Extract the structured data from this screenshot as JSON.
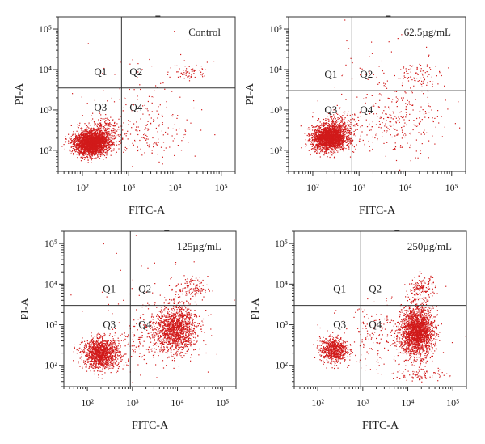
{
  "panels": [
    {
      "title": "Control",
      "xlabel": "FITC-A",
      "ylabel": "PI-A",
      "quadrants": [
        "Q1",
        "Q2",
        "Q3",
        "Q4"
      ]
    },
    {
      "title": "62.5µg/mL",
      "xlabel": "FITC-A",
      "ylabel": "PI-A",
      "quadrants": [
        "Q1",
        "Q2",
        "Q3",
        "Q4"
      ]
    },
    {
      "title": "125µg/mL",
      "xlabel": "FITC-A",
      "ylabel": "PI-A",
      "quadrants": [
        "Q1",
        "Q2",
        "Q3",
        "Q4"
      ]
    },
    {
      "title": "250µg/mL",
      "xlabel": "FITC-A",
      "ylabel": "PI-A",
      "quadrants": [
        "Q1",
        "Q2",
        "Q3",
        "Q4"
      ]
    }
  ],
  "chart_data": [
    {
      "type": "scatter",
      "title": "Control",
      "xlabel": "FITC-A",
      "ylabel": "PI-A",
      "x_scale": "log",
      "y_scale": "log",
      "xlim": [
        30,
        200000
      ],
      "ylim": [
        30,
        200000
      ],
      "x_ticks": [
        {
          "value": 100,
          "label": "10²"
        },
        {
          "value": 1000,
          "label": "10³"
        },
        {
          "value": 10000,
          "label": "10⁴"
        },
        {
          "value": 100000,
          "label": "10⁵"
        }
      ],
      "y_ticks": [
        {
          "value": 100,
          "label": "10²"
        },
        {
          "value": 1000,
          "label": "10³"
        },
        {
          "value": 10000,
          "label": "10⁴"
        },
        {
          "value": 100000,
          "label": "10⁵"
        }
      ],
      "gate": {
        "x": 700,
        "y": 3500
      },
      "quadrants": [
        "Q1",
        "Q2",
        "Q3",
        "Q4"
      ],
      "color": "#d11a1a",
      "clusters": [
        {
          "cx": 150,
          "cy": 150,
          "sx": 0.18,
          "sy": 0.14,
          "n": 2400
        },
        {
          "cx": 260,
          "cy": 260,
          "sx": 0.2,
          "sy": 0.2,
          "n": 400
        },
        {
          "cx": 20000,
          "cy": 9000,
          "sx": 0.2,
          "sy": 0.1,
          "n": 60
        },
        {
          "cx": 3000,
          "cy": 300,
          "sx": 0.4,
          "sy": 0.35,
          "n": 140
        },
        {
          "cx": 2000,
          "cy": 2000,
          "sx": 0.8,
          "sy": 0.7,
          "n": 90
        }
      ]
    },
    {
      "type": "scatter",
      "title": "62.5µg/mL",
      "xlabel": "FITC-A",
      "ylabel": "PI-A",
      "x_scale": "log",
      "y_scale": "log",
      "xlim": [
        30,
        200000
      ],
      "ylim": [
        30,
        200000
      ],
      "x_ticks": [
        {
          "value": 100,
          "label": "10²"
        },
        {
          "value": 1000,
          "label": "10³"
        },
        {
          "value": 10000,
          "label": "10⁴"
        },
        {
          "value": 100000,
          "label": "10⁵"
        }
      ],
      "y_ticks": [
        {
          "value": 100,
          "label": "10²"
        },
        {
          "value": 1000,
          "label": "10³"
        },
        {
          "value": 10000,
          "label": "10⁴"
        },
        {
          "value": 100000,
          "label": "10⁵"
        }
      ],
      "gate": {
        "x": 700,
        "y": 3000
      },
      "quadrants": [
        "Q1",
        "Q2",
        "Q3",
        "Q4"
      ],
      "color": "#d11a1a",
      "clusters": [
        {
          "cx": 220,
          "cy": 200,
          "sx": 0.18,
          "sy": 0.15,
          "n": 2000
        },
        {
          "cx": 350,
          "cy": 330,
          "sx": 0.2,
          "sy": 0.2,
          "n": 400
        },
        {
          "cx": 20000,
          "cy": 7000,
          "sx": 0.25,
          "sy": 0.15,
          "n": 80
        },
        {
          "cx": 6000,
          "cy": 500,
          "sx": 0.45,
          "sy": 0.4,
          "n": 220
        },
        {
          "cx": 3000,
          "cy": 2500,
          "sx": 0.8,
          "sy": 0.7,
          "n": 120
        }
      ]
    },
    {
      "type": "scatter",
      "title": "125µg/mL",
      "xlabel": "FITC-A",
      "ylabel": "PI-A",
      "x_scale": "log",
      "y_scale": "log",
      "xlim": [
        30,
        200000
      ],
      "ylim": [
        30,
        200000
      ],
      "x_ticks": [
        {
          "value": 100,
          "label": "10²"
        },
        {
          "value": 1000,
          "label": "10³"
        },
        {
          "value": 10000,
          "label": "10⁴"
        },
        {
          "value": 100000,
          "label": "10⁵"
        }
      ],
      "y_ticks": [
        {
          "value": 100,
          "label": "10²"
        },
        {
          "value": 1000,
          "label": "10³"
        },
        {
          "value": 10000,
          "label": "10⁴"
        },
        {
          "value": 100000,
          "label": "10⁵"
        }
      ],
      "gate": {
        "x": 900,
        "y": 3000
      },
      "quadrants": [
        "Q1",
        "Q2",
        "Q3",
        "Q4"
      ],
      "color": "#d11a1a",
      "clusters": [
        {
          "cx": 200,
          "cy": 200,
          "sx": 0.2,
          "sy": 0.18,
          "n": 1300
        },
        {
          "cx": 9000,
          "cy": 800,
          "sx": 0.22,
          "sy": 0.28,
          "n": 1300
        },
        {
          "cx": 20000,
          "cy": 8000,
          "sx": 0.18,
          "sy": 0.15,
          "n": 120
        },
        {
          "cx": 2500,
          "cy": 400,
          "sx": 0.45,
          "sy": 0.35,
          "n": 200
        },
        {
          "cx": 3000,
          "cy": 3000,
          "sx": 0.8,
          "sy": 0.7,
          "n": 80
        }
      ]
    },
    {
      "type": "scatter",
      "title": "250µg/mL",
      "xlabel": "FITC-A",
      "ylabel": "PI-A",
      "x_scale": "log",
      "y_scale": "log",
      "xlim": [
        30,
        200000
      ],
      "ylim": [
        30,
        200000
      ],
      "x_ticks": [
        {
          "value": 100,
          "label": "10²"
        },
        {
          "value": 1000,
          "label": "10³"
        },
        {
          "value": 10000,
          "label": "10⁴"
        },
        {
          "value": 100000,
          "label": "10⁵"
        }
      ],
      "y_ticks": [
        {
          "value": 100,
          "label": "10²"
        },
        {
          "value": 1000,
          "label": "10³"
        },
        {
          "value": 10000,
          "label": "10⁴"
        },
        {
          "value": 100000,
          "label": "10⁵"
        }
      ],
      "gate": {
        "x": 900,
        "y": 3000
      },
      "quadrants": [
        "Q1",
        "Q2",
        "Q3",
        "Q4"
      ],
      "color": "#d11a1a",
      "clusters": [
        {
          "cx": 220,
          "cy": 250,
          "sx": 0.15,
          "sy": 0.15,
          "n": 700
        },
        {
          "cx": 16000,
          "cy": 700,
          "sx": 0.18,
          "sy": 0.3,
          "n": 2000
        },
        {
          "cx": 20000,
          "cy": 8000,
          "sx": 0.15,
          "sy": 0.15,
          "n": 150
        },
        {
          "cx": 3000,
          "cy": 500,
          "sx": 0.5,
          "sy": 0.4,
          "n": 220
        },
        {
          "cx": 18000,
          "cy": 60,
          "sx": 0.3,
          "sy": 0.08,
          "n": 80
        }
      ]
    }
  ]
}
